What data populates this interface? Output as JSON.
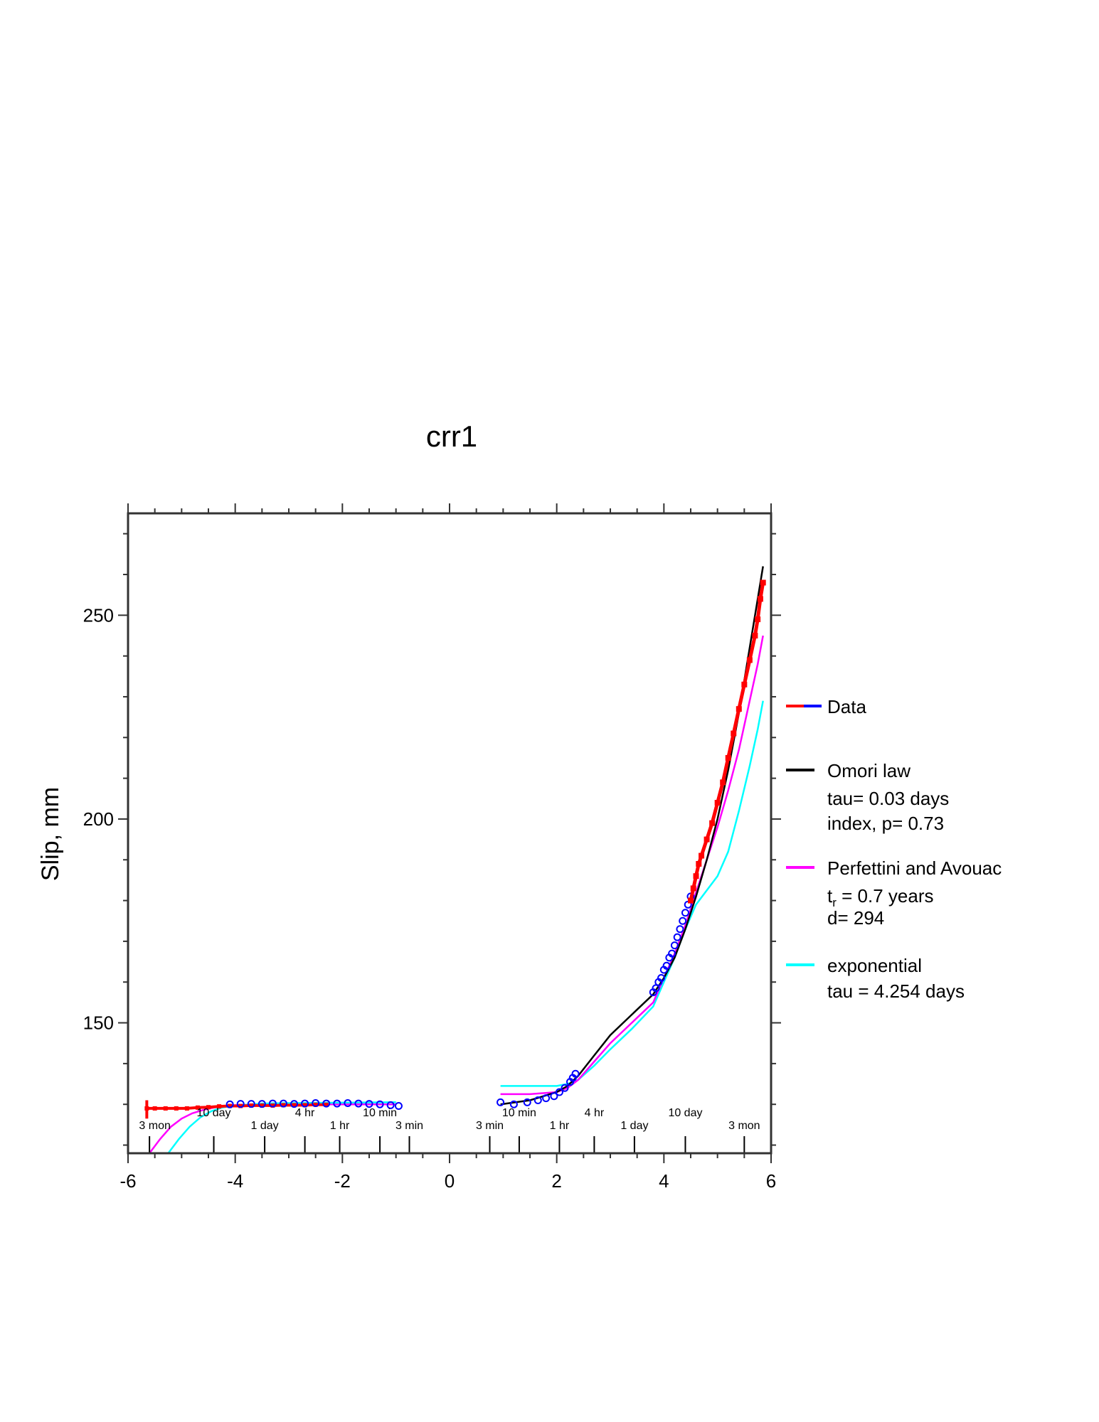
{
  "chart_data": {
    "type": "line",
    "title": "crr1",
    "xlabel": "",
    "ylabel": "Slip, mm",
    "xlim": [
      -6,
      6
    ],
    "ylim": [
      118,
      275
    ],
    "x_ticks": [
      -6,
      -4,
      -2,
      0,
      2,
      4,
      6
    ],
    "y_ticks": [
      150,
      200,
      250
    ],
    "grid": false,
    "legend_position": "right",
    "time_labels_left": [
      {
        "label": "3 mon",
        "x": -5.5,
        "row": "lower"
      },
      {
        "label": "10 day",
        "x": -4.4,
        "row": "upper"
      },
      {
        "label": "1 day",
        "x": -3.45,
        "row": "lower"
      },
      {
        "label": "4 hr",
        "x": -2.7,
        "row": "upper"
      },
      {
        "label": "1 hr",
        "x": -2.05,
        "row": "lower"
      },
      {
        "label": "10 min",
        "x": -1.3,
        "row": "upper"
      },
      {
        "label": "3 min",
        "x": -0.75,
        "row": "lower"
      }
    ],
    "time_labels_right": [
      {
        "label": "3 min",
        "x": 0.75,
        "row": "lower"
      },
      {
        "label": "10 min",
        "x": 1.3,
        "row": "upper"
      },
      {
        "label": "1 hr",
        "x": 2.05,
        "row": "lower"
      },
      {
        "label": "4 hr",
        "x": 2.7,
        "row": "upper"
      },
      {
        "label": "1 day",
        "x": 3.45,
        "row": "lower"
      },
      {
        "label": "10 day",
        "x": 4.4,
        "row": "upper"
      },
      {
        "label": "3 mon",
        "x": 5.5,
        "row": "lower"
      }
    ],
    "time_tick_x": [
      -5.6,
      -4.4,
      -3.45,
      -2.7,
      -2.05,
      -1.3,
      -0.75,
      0.75,
      1.3,
      2.05,
      2.7,
      3.45,
      4.4,
      5.5
    ],
    "series": [
      {
        "name": "Data",
        "kind": "pre-data",
        "color": "#ff0000",
        "x": [
          -5.65,
          -5.5,
          -5.3,
          -5.1,
          -4.9,
          -4.7,
          -4.5,
          -4.3,
          -4.1,
          -3.9,
          -3.7,
          -3.5,
          -3.3,
          -3.1,
          -2.9,
          -2.7,
          -2.5,
          -2.3
        ],
        "y": [
          129,
          129,
          129,
          129,
          129,
          129.2,
          129.3,
          129.5,
          129.6,
          129.6,
          129.7,
          129.7,
          129.7,
          129.8,
          129.8,
          129.8,
          129.9,
          129.9
        ]
      },
      {
        "name": "",
        "kind": "pre-data-blue",
        "color": "#0000ff",
        "x": [
          -4.1,
          -3.9,
          -3.7,
          -3.5,
          -3.3,
          -3.1,
          -2.9,
          -2.7,
          -2.5,
          -2.3,
          -2.1,
          -1.9,
          -1.7,
          -1.5,
          -1.3,
          -1.1,
          -0.95
        ],
        "y": [
          130,
          130.1,
          130.1,
          130.1,
          130.2,
          130.2,
          130.1,
          130.2,
          130.3,
          130.2,
          130.2,
          130.3,
          130.2,
          130.1,
          130,
          129.8,
          129.6
        ]
      },
      {
        "name": "Data",
        "kind": "post-data-blue",
        "color": "#0000ff",
        "x": [
          0.95,
          1.2,
          1.45,
          1.65,
          1.8,
          1.95,
          2.05,
          2.15,
          2.25,
          2.3,
          2.35,
          3.8,
          3.85,
          3.9,
          3.95,
          4.0,
          4.05,
          4.1,
          4.15,
          4.2,
          4.25,
          4.3,
          4.35,
          4.4,
          4.45,
          4.5
        ],
        "y": [
          130.5,
          130,
          130.5,
          131,
          131.5,
          132,
          133,
          134,
          135.5,
          136.5,
          137.5,
          157.5,
          158.5,
          160,
          161,
          163,
          164,
          166,
          167,
          169,
          171,
          173,
          175,
          177,
          179,
          181
        ]
      },
      {
        "name": "Data",
        "kind": "post-data-red",
        "color": "#ff0000",
        "x": [
          4.5,
          4.55,
          4.6,
          4.65,
          4.7,
          4.8,
          4.9,
          5.0,
          5.1,
          5.2,
          5.3,
          5.4,
          5.5,
          5.6,
          5.7,
          5.75,
          5.8,
          5.85
        ],
        "y": [
          180,
          183,
          186,
          189,
          191,
          195,
          199,
          204,
          209,
          215,
          221,
          227,
          233,
          239,
          245,
          249,
          254,
          258
        ]
      },
      {
        "name": "Omori law",
        "kind": "model",
        "color": "#000000",
        "x": [
          0.95,
          1.5,
          2.0,
          2.2,
          2.4,
          2.7,
          3.0,
          3.4,
          3.8,
          4.0,
          4.2,
          4.4,
          4.6,
          4.8,
          5.0,
          5.2,
          5.4,
          5.6,
          5.75,
          5.85
        ],
        "y": [
          130,
          131,
          133,
          134.5,
          137,
          142,
          147,
          152,
          157,
          161,
          166,
          173,
          181,
          190,
          200,
          212,
          226,
          242,
          254,
          262
        ]
      },
      {
        "name": "Perfettini and Avouac",
        "kind": "model",
        "color": "#ff00ff",
        "x": [
          0.95,
          1.5,
          2.0,
          2.2,
          2.4,
          2.7,
          3.0,
          3.4,
          3.8,
          4.0,
          4.2,
          4.4,
          4.6,
          4.8,
          5.0,
          5.2,
          5.4,
          5.6,
          5.75,
          5.85
        ],
        "y": [
          132.5,
          132.5,
          133,
          134,
          136,
          140.5,
          145,
          150,
          155,
          161,
          167,
          174,
          182,
          190,
          198,
          207,
          217,
          229,
          238,
          245
        ]
      },
      {
        "name": "exponential",
        "kind": "model",
        "color": "#00ffff",
        "x": [
          0.95,
          1.5,
          2.0,
          2.2,
          2.4,
          2.7,
          3.0,
          3.4,
          3.8,
          4.0,
          4.2,
          4.4,
          4.6,
          4.8,
          5.0,
          5.2,
          5.4,
          5.6,
          5.75,
          5.85
        ],
        "y": [
          134.5,
          134.5,
          134.5,
          135,
          136,
          139.5,
          143.5,
          148.5,
          154,
          160,
          166,
          173,
          179,
          182.5,
          186,
          192,
          202,
          213,
          222,
          229
        ]
      },
      {
        "name": "",
        "kind": "model-pre",
        "color": "#ff00ff",
        "x": [
          -5.6,
          -5.4,
          -5.2,
          -5.0,
          -4.8,
          -4.6,
          -4.4,
          -4.2,
          -4.0,
          -3.5,
          -3.0,
          -2.0,
          -1.0
        ],
        "y": [
          118,
          121.5,
          124.5,
          126.5,
          127.8,
          128.6,
          129.2,
          129.6,
          129.8,
          130,
          130,
          130,
          130
        ]
      },
      {
        "name": "",
        "kind": "model-pre",
        "color": "#00ffff",
        "x": [
          -5.25,
          -5.05,
          -4.85,
          -4.65,
          -4.45,
          -4.25,
          -4.0,
          -3.5,
          -3.0,
          -2.0,
          -1.0
        ],
        "y": [
          118,
          121.5,
          124.5,
          126.8,
          128.3,
          129.2,
          129.7,
          130.2,
          130.3,
          130.4,
          130.5
        ]
      }
    ]
  },
  "legend": {
    "data": "Data",
    "omori": {
      "name": "Omori law",
      "line1": "tau= 0.03 days",
      "line2": "index, p= 0.73"
    },
    "perfettini": {
      "name": "Perfettini and Avouac",
      "line1_prefix": "t",
      "line1_sub": "r",
      "line1_rest": " = 0.7 years",
      "line2": "d= 294"
    },
    "exponential": {
      "name": "exponential",
      "line1": "tau = 4.254 days"
    }
  },
  "colors": {
    "red": "#ff0000",
    "blue": "#0000ff",
    "black": "#000000",
    "magenta": "#ff00ff",
    "cyan": "#00ffff"
  }
}
